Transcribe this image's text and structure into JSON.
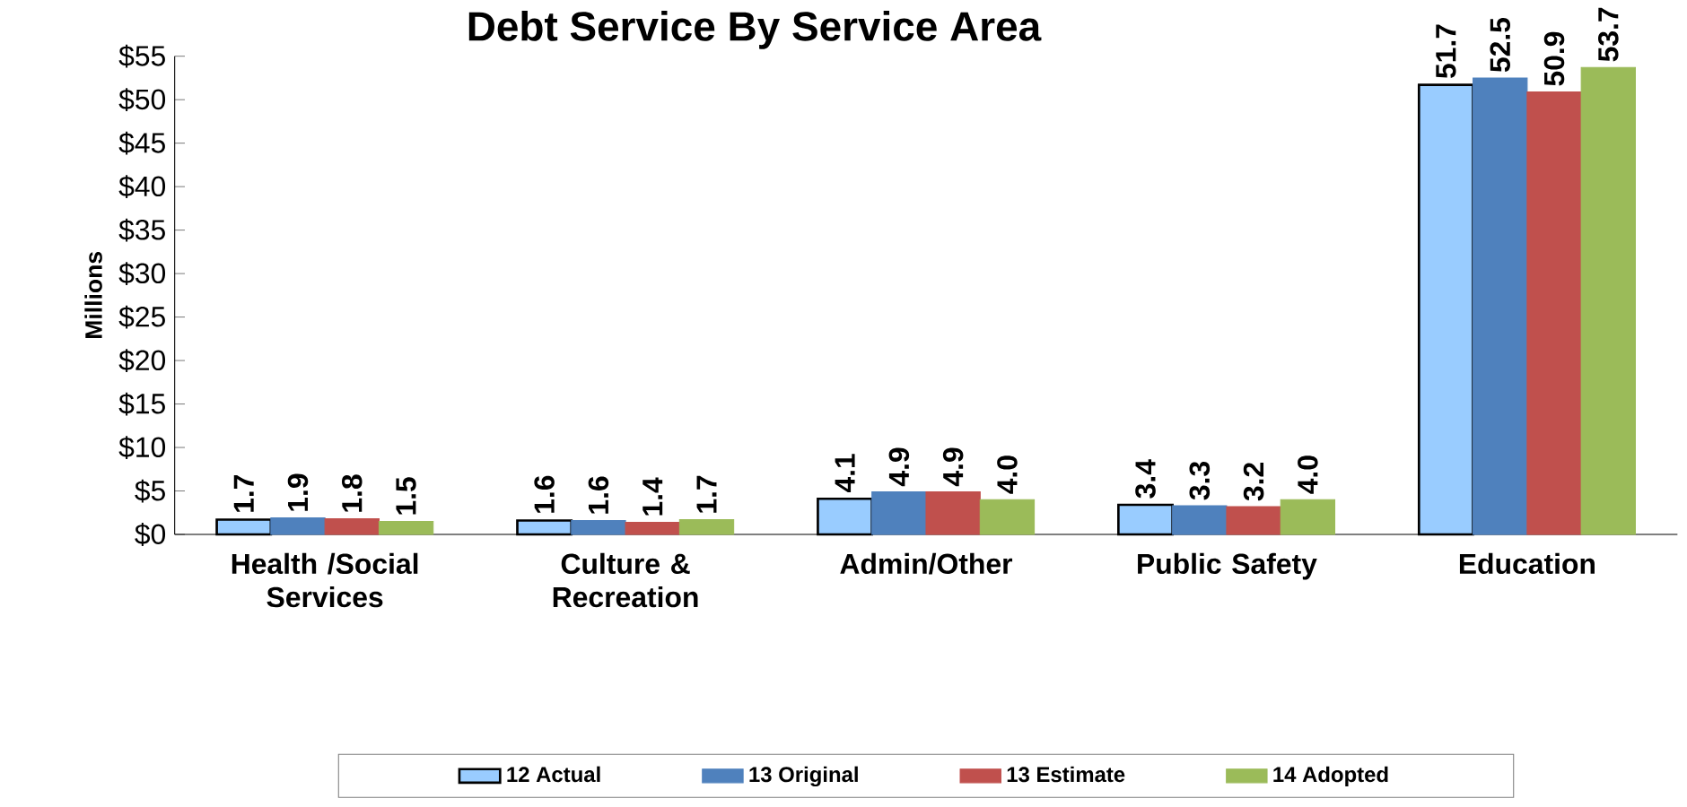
{
  "chart_data": {
    "type": "bar",
    "title": "Debt Service By Service Area",
    "ylabel": "Millions",
    "categories": [
      "Health /Social Services",
      "Culture & Recreation",
      "Admin/Other",
      "Public Safety",
      "Education"
    ],
    "series": [
      {
        "name": "12 Actual",
        "color": "#99ccff",
        "values": [
          1.7,
          1.6,
          4.1,
          3.4,
          51.7
        ],
        "value_labels": [
          "1.7",
          "1.6",
          "4.1",
          "3.4",
          "51.7"
        ]
      },
      {
        "name": "13 Original",
        "color": "#4f81bd",
        "values": [
          1.9,
          1.6,
          4.9,
          3.3,
          52.5
        ],
        "value_labels": [
          "1.9",
          "1.6",
          "4.9",
          "3.3",
          "52.5"
        ]
      },
      {
        "name": "13 Estimate",
        "color": "#c0504d",
        "values": [
          1.8,
          1.4,
          4.9,
          3.2,
          50.9
        ],
        "value_labels": [
          "1.8",
          "1.4",
          "4.9",
          "3.2",
          "50.9"
        ]
      },
      {
        "name": "14 Adopted",
        "color": "#9bbb59",
        "values": [
          1.5,
          1.7,
          4.0,
          4.0,
          53.7
        ],
        "value_labels": [
          "1.5",
          "1.7",
          "4.0",
          "4.0",
          "53.7"
        ]
      }
    ],
    "ylim": [
      0,
      55
    ],
    "yticks": [
      {
        "value": 0,
        "label": "$0"
      },
      {
        "value": 5,
        "label": "$5"
      },
      {
        "value": 10,
        "label": "$10"
      },
      {
        "value": 15,
        "label": "$15"
      },
      {
        "value": 20,
        "label": "$20"
      },
      {
        "value": 25,
        "label": "$25"
      },
      {
        "value": 30,
        "label": "$30"
      },
      {
        "value": 35,
        "label": "$35"
      },
      {
        "value": 40,
        "label": "$40"
      },
      {
        "value": 45,
        "label": "$45"
      },
      {
        "value": 50,
        "label": "$50"
      },
      {
        "value": 55,
        "label": "$55"
      }
    ],
    "legend": "bottom",
    "grid": false
  }
}
